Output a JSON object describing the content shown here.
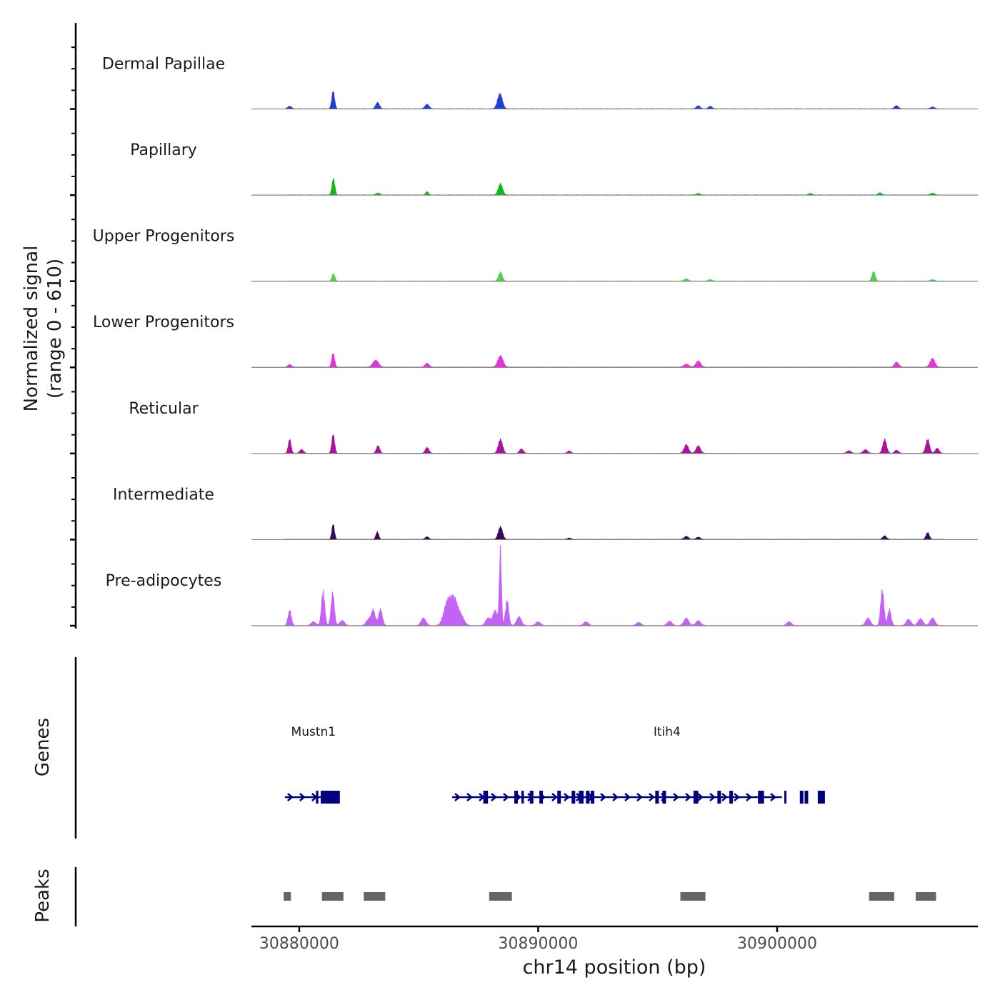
{
  "chart_data": {
    "type": "area",
    "chromosome": "chr14",
    "xlim": [
      30878000,
      30908400
    ],
    "y_axis_label": "Normalized signal",
    "y_range_label": "(range 0 - 610)",
    "ylim": [
      0,
      610
    ],
    "xlabel": "chr14 position (bp)",
    "x_ticks": [
      30880000,
      30890000,
      30900000
    ],
    "x_tick_labels": [
      "30880000",
      "30890000",
      "30900000"
    ],
    "coverage_x_extent": [
      30879400,
      30907000
    ],
    "tracks": [
      {
        "name": "Dermal Papillae",
        "color": "#1f3fd6",
        "peaks": [
          [
            30879600,
            20,
            80
          ],
          [
            30881420,
            140,
            60
          ],
          [
            30883280,
            50,
            80
          ],
          [
            30885350,
            35,
            90
          ],
          [
            30888400,
            120,
            100
          ],
          [
            30896700,
            25,
            80
          ],
          [
            30897200,
            20,
            80
          ],
          [
            30905000,
            25,
            80
          ],
          [
            30906500,
            15,
            80
          ]
        ]
      },
      {
        "name": "Papillary",
        "color": "#14b914",
        "peaks": [
          [
            30881430,
            130,
            60
          ],
          [
            30883300,
            15,
            80
          ],
          [
            30885350,
            25,
            60
          ],
          [
            30888420,
            90,
            90
          ],
          [
            30896700,
            12,
            80
          ],
          [
            30901400,
            12,
            80
          ],
          [
            30904300,
            18,
            70
          ],
          [
            30906500,
            15,
            80
          ]
        ]
      },
      {
        "name": "Upper Progenitors",
        "color": "#4dd24d",
        "peaks": [
          [
            30881430,
            60,
            60
          ],
          [
            30888420,
            70,
            80
          ],
          [
            30896200,
            18,
            80
          ],
          [
            30897200,
            12,
            80
          ],
          [
            30904040,
            75,
            70
          ],
          [
            30906500,
            12,
            80
          ]
        ]
      },
      {
        "name": "Lower Progenitors",
        "color": "#e830e0",
        "peaks": [
          [
            30879600,
            20,
            80
          ],
          [
            30881420,
            110,
            60
          ],
          [
            30883200,
            55,
            120
          ],
          [
            30885350,
            30,
            90
          ],
          [
            30888420,
            90,
            110
          ],
          [
            30896200,
            25,
            100
          ],
          [
            30896700,
            50,
            100
          ],
          [
            30905000,
            40,
            90
          ],
          [
            30906500,
            70,
            100
          ]
        ]
      },
      {
        "name": "Reticular",
        "color": "#a8149e",
        "peaks": [
          [
            30879600,
            110,
            60
          ],
          [
            30880100,
            30,
            80
          ],
          [
            30881420,
            150,
            60
          ],
          [
            30883300,
            60,
            70
          ],
          [
            30885350,
            45,
            80
          ],
          [
            30888420,
            110,
            90
          ],
          [
            30889300,
            35,
            80
          ],
          [
            30891300,
            20,
            70
          ],
          [
            30896200,
            70,
            90
          ],
          [
            30896700,
            60,
            90
          ],
          [
            30903000,
            20,
            90
          ],
          [
            30903700,
            30,
            90
          ],
          [
            30904500,
            110,
            80
          ],
          [
            30905000,
            25,
            80
          ],
          [
            30906300,
            110,
            80
          ],
          [
            30906700,
            40,
            80
          ]
        ]
      },
      {
        "name": "Intermediate",
        "color": "#3a0a58",
        "peaks": [
          [
            30881420,
            120,
            55
          ],
          [
            30883270,
            60,
            60
          ],
          [
            30885350,
            20,
            80
          ],
          [
            30888420,
            100,
            90
          ],
          [
            30891300,
            12,
            70
          ],
          [
            30896200,
            25,
            90
          ],
          [
            30896700,
            18,
            90
          ],
          [
            30904500,
            28,
            80
          ],
          [
            30906300,
            55,
            70
          ]
        ]
      },
      {
        "name": "Pre-adipocytes",
        "color": "#c462f5",
        "peaks": [
          [
            30879600,
            120,
            70
          ],
          [
            30880600,
            30,
            100
          ],
          [
            30881000,
            270,
            70
          ],
          [
            30881400,
            260,
            70
          ],
          [
            30881800,
            40,
            100
          ],
          [
            30882900,
            50,
            100
          ],
          [
            30883100,
            120,
            80
          ],
          [
            30883400,
            130,
            80
          ],
          [
            30885200,
            60,
            100
          ],
          [
            30886200,
            180,
            150
          ],
          [
            30886500,
            200,
            150
          ],
          [
            30886800,
            60,
            120
          ],
          [
            30887900,
            60,
            100
          ],
          [
            30888200,
            120,
            100
          ],
          [
            30888420,
            610,
            45
          ],
          [
            30888700,
            200,
            70
          ],
          [
            30889200,
            70,
            100
          ],
          [
            30890000,
            30,
            100
          ],
          [
            30892000,
            30,
            100
          ],
          [
            30894200,
            25,
            100
          ],
          [
            30895500,
            35,
            100
          ],
          [
            30896200,
            60,
            100
          ],
          [
            30896700,
            40,
            100
          ],
          [
            30900500,
            30,
            100
          ],
          [
            30903800,
            60,
            100
          ],
          [
            30904400,
            280,
            70
          ],
          [
            30904700,
            130,
            70
          ],
          [
            30905500,
            50,
            100
          ],
          [
            30906000,
            55,
            100
          ],
          [
            30906500,
            60,
            100
          ]
        ]
      }
    ],
    "genes": [
      {
        "name": "Mustn1",
        "start": 30879400,
        "end": 30881700,
        "exons": [
          [
            30880700,
            30880800
          ],
          [
            30880900,
            30881700
          ]
        ]
      },
      {
        "name": "Itih4",
        "start": 30886400,
        "end": 30900200,
        "exons": [
          [
            30887700,
            30887900
          ],
          [
            30889000,
            30889150
          ],
          [
            30889300,
            30889400
          ],
          [
            30889650,
            30889800
          ],
          [
            30890050,
            30890200
          ],
          [
            30890800,
            30890950
          ],
          [
            30891400,
            30891550
          ],
          [
            30891700,
            30891900
          ],
          [
            30892000,
            30892150
          ],
          [
            30892200,
            30892350
          ],
          [
            30894900,
            30895050
          ],
          [
            30895200,
            30895350
          ],
          [
            30896500,
            30896700
          ],
          [
            30897500,
            30897650
          ],
          [
            30898000,
            30898150
          ],
          [
            30899200,
            30899450
          ],
          [
            30900300,
            30900350
          ],
          [
            30900950,
            30901100
          ],
          [
            30901150,
            30901300
          ],
          [
            30901700,
            30902000
          ]
        ]
      }
    ],
    "peaks_track": {
      "name": "Peaks",
      "color": "#666666",
      "regions": [
        [
          30879350,
          30879650
        ],
        [
          30880950,
          30881850
        ],
        [
          30882700,
          30883600
        ],
        [
          30887950,
          30888900
        ],
        [
          30895950,
          30897000
        ],
        [
          30903850,
          30904900
        ],
        [
          30905800,
          30906650
        ]
      ]
    },
    "genes_track_label": "Genes"
  }
}
